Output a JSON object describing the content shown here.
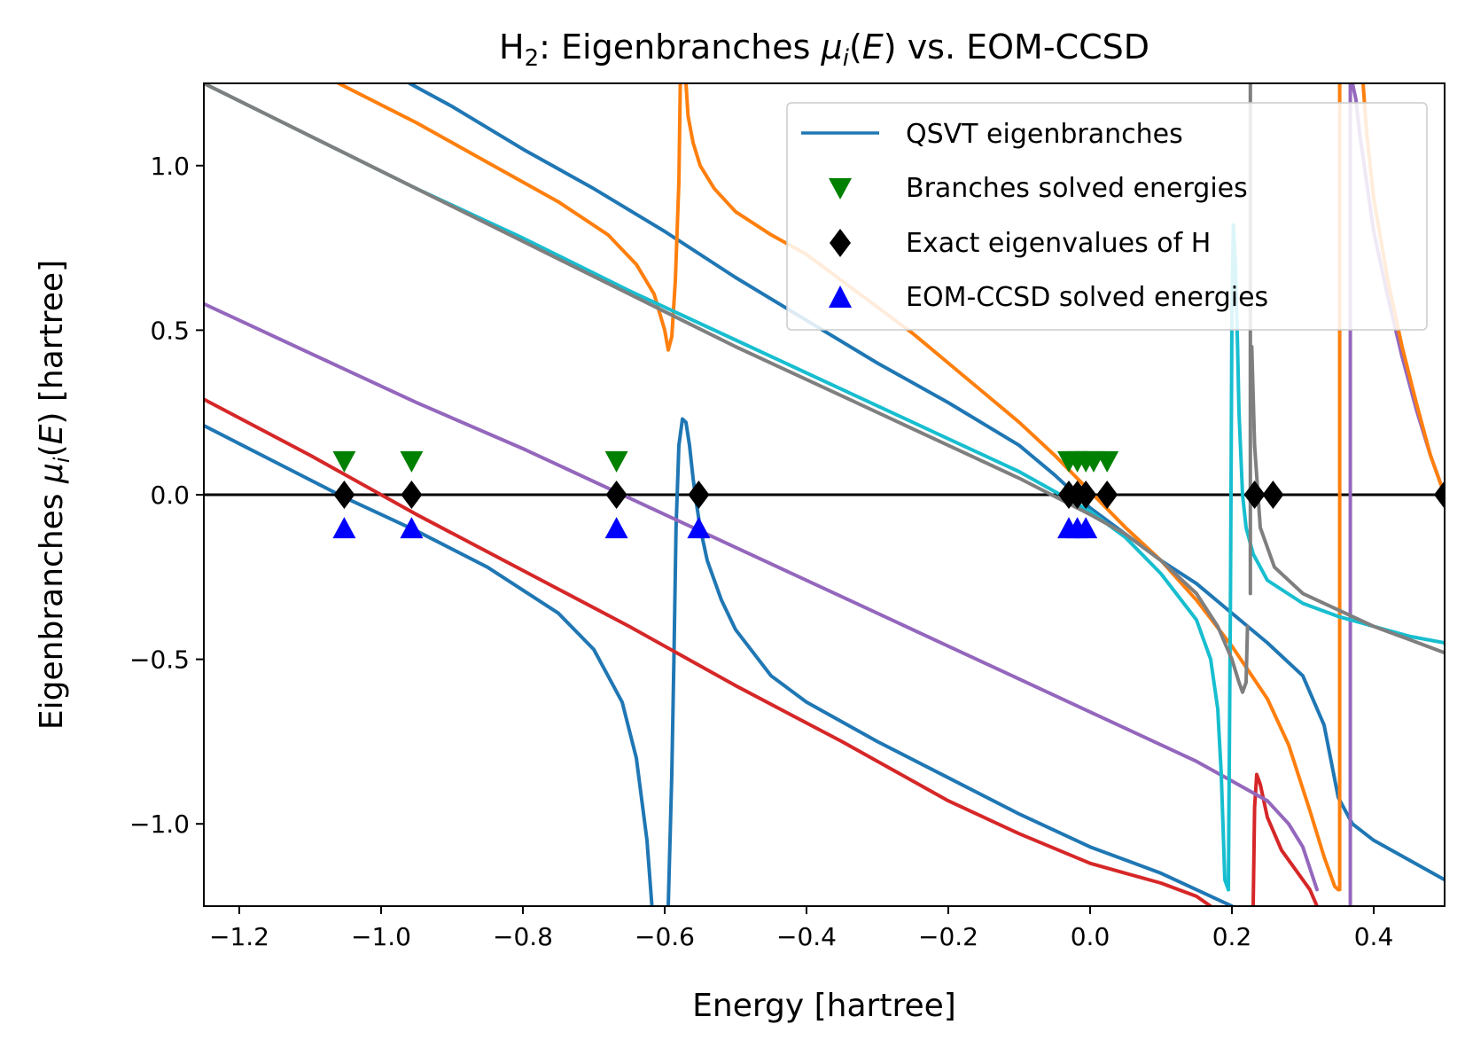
{
  "chart_data": {
    "type": "line",
    "title": {
      "prefix": "H",
      "sub": "2",
      "mid": ": Eigenbranches ",
      "mu": "μ",
      "i": "i",
      "open": "(",
      "E": "E",
      "close": ")",
      "suffix": " vs. EOM-CCSD"
    },
    "xlabel": "Energy [hartree]",
    "ylabel": {
      "prefix": "Eigenbranches ",
      "mu": "μ",
      "i": "i",
      "open": "(",
      "E": "E",
      "close": ")",
      "suffix": " [hartree]"
    },
    "xlim": [
      -1.25,
      0.5
    ],
    "ylim": [
      -1.25,
      1.25
    ],
    "xticks": [
      -1.2,
      -1.0,
      -0.8,
      -0.6,
      -0.4,
      -0.2,
      0.0,
      0.2,
      0.4
    ],
    "xtick_labels": [
      "−1.2",
      "−1.0",
      "−0.8",
      "−0.6",
      "−0.4",
      "−0.2",
      "0.0",
      "0.2",
      "0.4"
    ],
    "yticks": [
      -1.0,
      -0.5,
      0.0,
      0.5,
      1.0
    ],
    "ytick_labels": [
      "−1.0",
      "−0.5",
      "0.0",
      "0.5",
      "1.0"
    ],
    "grid": false,
    "legend_position": "top-right",
    "legend": [
      {
        "label": "QSVT eigenbranches",
        "marker": "line",
        "color": "#1f77b4"
      },
      {
        "label": "Branches solved energies",
        "marker": "triangle-down",
        "color": "#008000"
      },
      {
        "label": "Exact eigenvalues of H",
        "marker": "diamond",
        "color": "#000000"
      },
      {
        "label": "EOM-CCSD solved energies",
        "marker": "triangle-up",
        "color": "#0000ff"
      }
    ],
    "zero_line": {
      "y": 0,
      "color": "#000000"
    },
    "series": [
      {
        "color": "#1f77b4",
        "x": [
          -1.25,
          -1.15,
          -1.05,
          -0.95,
          -0.85,
          -0.75,
          -0.7,
          -0.66,
          -0.64,
          -0.625,
          -0.618
        ],
        "y": [
          0.21,
          0.1,
          -0.01,
          -0.11,
          -0.22,
          -0.36,
          -0.47,
          -0.63,
          -0.8,
          -1.05,
          -1.25
        ]
      },
      {
        "color": "#1f77b4",
        "x": [
          -0.595,
          -0.59,
          -0.587,
          -0.584,
          -0.58,
          -0.575,
          -0.57,
          -0.565,
          -0.56,
          -0.555,
          -0.55,
          -0.54,
          -0.52,
          -0.5,
          -0.45,
          -0.4,
          -0.3,
          -0.2,
          -0.1,
          0.0,
          0.1,
          0.15,
          0.2
        ],
        "y": [
          -1.25,
          -0.85,
          -0.5,
          -0.1,
          0.15,
          0.23,
          0.22,
          0.15,
          0.05,
          -0.03,
          -0.1,
          -0.2,
          -0.32,
          -0.41,
          -0.55,
          -0.63,
          -0.75,
          -0.86,
          -0.97,
          -1.07,
          -1.15,
          -1.2,
          -1.25
        ]
      },
      {
        "color": "#1f77b4",
        "x": [
          -0.96,
          -0.9,
          -0.8,
          -0.7,
          -0.6,
          -0.5,
          -0.4,
          -0.3,
          -0.2,
          -0.1,
          -0.05,
          0.0,
          0.05,
          0.1,
          0.15,
          0.2,
          0.25,
          0.3,
          0.33,
          0.35,
          0.37,
          0.4,
          0.45,
          0.5
        ],
        "y": [
          1.25,
          1.18,
          1.05,
          0.93,
          0.8,
          0.66,
          0.53,
          0.4,
          0.28,
          0.15,
          0.06,
          -0.04,
          -0.12,
          -0.2,
          -0.27,
          -0.36,
          -0.45,
          -0.55,
          -0.7,
          -0.92,
          -1.0,
          -1.05,
          -1.11,
          -1.17
        ]
      },
      {
        "color": "#d62728",
        "x": [
          -1.25,
          -1.1,
          -0.95,
          -0.8,
          -0.65,
          -0.5,
          -0.35,
          -0.2,
          -0.1,
          0.0,
          0.05,
          0.1,
          0.15,
          0.17
        ],
        "y": [
          0.29,
          0.12,
          -0.06,
          -0.23,
          -0.4,
          -0.58,
          -0.75,
          -0.93,
          -1.03,
          -1.12,
          -1.15,
          -1.18,
          -1.22,
          -1.25
        ]
      },
      {
        "color": "#d62728",
        "x": [
          0.23,
          0.232,
          0.235,
          0.24,
          0.25,
          0.27,
          0.29,
          0.31,
          0.32
        ],
        "y": [
          -1.25,
          -0.95,
          -0.85,
          -0.88,
          -0.98,
          -1.08,
          -1.14,
          -1.2,
          -1.25
        ]
      },
      {
        "color": "#9467bd",
        "x": [
          -1.25,
          -1.1,
          -0.95,
          -0.8,
          -0.65,
          -0.5,
          -0.35,
          -0.2,
          -0.05,
          0.05,
          0.15,
          0.2,
          0.25,
          0.28,
          0.3,
          0.32
        ],
        "y": [
          0.58,
          0.43,
          0.28,
          0.14,
          -0.01,
          -0.16,
          -0.31,
          -0.46,
          -0.61,
          -0.71,
          -0.81,
          -0.87,
          -0.93,
          -1.0,
          -1.07,
          -1.2
        ]
      },
      {
        "color": "#9467bd",
        "x": [
          0.367,
          0.367
        ],
        "y": [
          -1.25,
          1.25
        ]
      },
      {
        "color": "#9467bd",
        "x": [
          0.37,
          0.375,
          0.38,
          0.39,
          0.4,
          0.42,
          0.44,
          0.46,
          0.48,
          0.5
        ],
        "y": [
          1.25,
          1.2,
          1.1,
          0.95,
          0.8,
          0.6,
          0.42,
          0.26,
          0.12,
          0.0
        ]
      },
      {
        "color": "#ff7f0e",
        "x": [
          -1.06,
          -0.95,
          -0.85,
          -0.75,
          -0.68,
          -0.64,
          -0.615,
          -0.6,
          -0.595,
          -0.59,
          -0.585,
          -0.58,
          -0.578
        ],
        "y": [
          1.25,
          1.13,
          1.01,
          0.89,
          0.79,
          0.7,
          0.61,
          0.5,
          0.44,
          0.48,
          0.65,
          0.95,
          1.25
        ]
      },
      {
        "color": "#ff7f0e",
        "x": [
          -0.57,
          -0.567,
          -0.56,
          -0.55,
          -0.53,
          -0.5,
          -0.45,
          -0.4,
          -0.35,
          -0.3,
          -0.25,
          -0.2,
          -0.15,
          -0.1,
          -0.05,
          0.0,
          0.05,
          0.1,
          0.15,
          0.2,
          0.25,
          0.28,
          0.31,
          0.33,
          0.345,
          0.35
        ],
        "y": [
          1.25,
          1.15,
          1.07,
          1.0,
          0.93,
          0.86,
          0.79,
          0.73,
          0.65,
          0.57,
          0.49,
          0.4,
          0.31,
          0.22,
          0.12,
          0.01,
          -0.1,
          -0.2,
          -0.32,
          -0.46,
          -0.62,
          -0.76,
          -0.96,
          -1.1,
          -1.19,
          -1.2
        ]
      },
      {
        "color": "#ff7f0e",
        "x": [
          0.352,
          0.352
        ],
        "y": [
          -1.2,
          1.25
        ]
      },
      {
        "color": "#ff7f0e",
        "x": [
          0.385,
          0.39,
          0.4,
          0.42,
          0.44,
          0.46,
          0.48,
          0.5
        ],
        "y": [
          1.25,
          1.1,
          0.9,
          0.65,
          0.45,
          0.28,
          0.12,
          0.0
        ]
      },
      {
        "color": "#17becf",
        "x": [
          -1.25,
          -1.1,
          -0.95,
          -0.8,
          -0.65,
          -0.5,
          -0.35,
          -0.2,
          -0.1,
          0.0,
          0.05,
          0.1,
          0.15,
          0.17,
          0.18,
          0.185,
          0.19,
          0.195
        ],
        "y": [
          1.25,
          1.09,
          0.93,
          0.78,
          0.62,
          0.47,
          0.32,
          0.17,
          0.07,
          -0.05,
          -0.13,
          -0.24,
          -0.38,
          -0.5,
          -0.65,
          -0.85,
          -1.17,
          -1.2
        ]
      },
      {
        "color": "#17becf",
        "x": [
          0.195,
          0.198,
          0.2,
          0.202,
          0.205,
          0.208,
          0.21,
          0.215,
          0.22,
          0.23,
          0.25,
          0.3,
          0.35,
          0.4,
          0.45,
          0.5
        ],
        "y": [
          -1.2,
          -0.3,
          0.55,
          0.82,
          0.7,
          0.45,
          0.25,
          0.0,
          -0.1,
          -0.18,
          -0.26,
          -0.33,
          -0.37,
          -0.4,
          -0.43,
          -0.45
        ]
      },
      {
        "color": "#7f7f7f",
        "x": [
          -1.25,
          -1.1,
          -0.95,
          -0.8,
          -0.65,
          -0.5,
          -0.35,
          -0.2,
          -0.1,
          0.0,
          0.05,
          0.1,
          0.15,
          0.18,
          0.2,
          0.21,
          0.215,
          0.22,
          0.222
        ],
        "y": [
          1.25,
          1.09,
          0.93,
          0.77,
          0.61,
          0.45,
          0.3,
          0.15,
          0.05,
          -0.06,
          -0.12,
          -0.2,
          -0.3,
          -0.4,
          -0.5,
          -0.57,
          -0.6,
          -0.57,
          -0.4
        ]
      },
      {
        "color": "#7f7f7f",
        "x": [
          0.226,
          0.226
        ],
        "y": [
          -0.3,
          1.25
        ]
      },
      {
        "color": "#7f7f7f",
        "x": [
          0.228,
          0.232,
          0.24,
          0.26,
          0.3,
          0.35,
          0.4,
          0.45,
          0.5
        ],
        "y": [
          0.45,
          0.15,
          -0.1,
          -0.22,
          -0.3,
          -0.35,
          -0.4,
          -0.44,
          -0.48
        ]
      }
    ],
    "markers": {
      "branches_solved": {
        "marker": "triangle-down",
        "color": "#008000",
        "x": [
          -1.052,
          -0.957,
          -0.668,
          -0.03,
          -0.018,
          -0.006,
          0.005,
          0.024
        ],
        "y": [
          0.1,
          0.1,
          0.1,
          0.1,
          0.1,
          0.1,
          0.1,
          0.1
        ]
      },
      "exact_eigenvalues": {
        "marker": "diamond",
        "color": "#000000",
        "x": [
          -1.052,
          -0.957,
          -0.668,
          -0.552,
          -0.03,
          -0.018,
          -0.006,
          0.024,
          0.232,
          0.258,
          0.5
        ],
        "y": [
          0,
          0,
          0,
          0,
          0,
          0,
          0,
          0,
          0,
          0,
          0
        ]
      },
      "eom_ccsd": {
        "marker": "triangle-up",
        "color": "#0000ff",
        "x": [
          -1.052,
          -0.957,
          -0.668,
          -0.552,
          -0.03,
          -0.018,
          -0.006
        ],
        "y": [
          -0.1,
          -0.1,
          -0.1,
          -0.1,
          -0.1,
          -0.1,
          -0.1
        ]
      }
    }
  }
}
